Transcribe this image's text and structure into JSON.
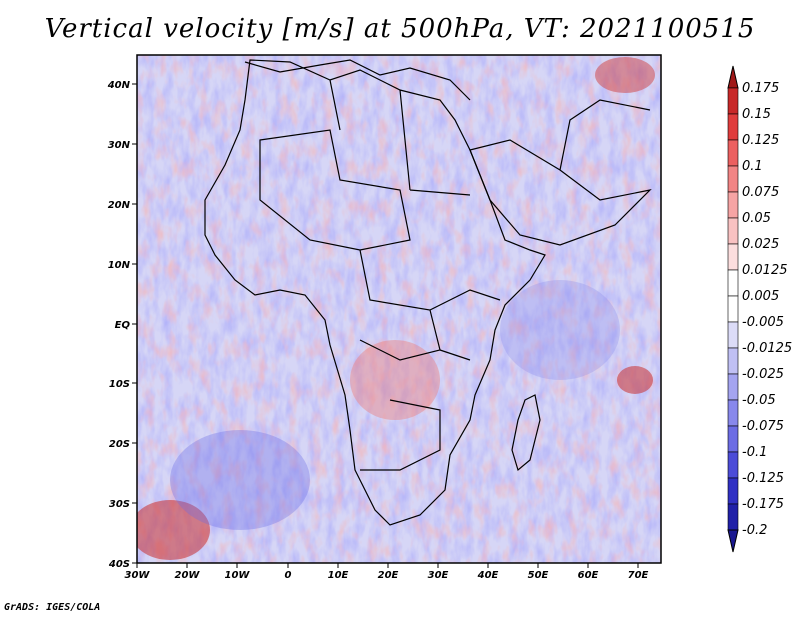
{
  "title": "Vertical velocity [m/s] at 500hPa, VT: 2021100515",
  "credit": "GrADS: IGES/COLA",
  "map": {
    "projection": "lat-lon",
    "lon_range": [
      -30,
      75
    ],
    "lat_range": [
      -40,
      45
    ],
    "lon_ticks": [
      "30W",
      "20W",
      "10W",
      "0",
      "10E",
      "20E",
      "30E",
      "40E",
      "50E",
      "60E",
      "70E"
    ],
    "lat_ticks": [
      "40N",
      "30N",
      "20N",
      "10N",
      "EQ",
      "10S",
      "20S",
      "30S",
      "40S"
    ]
  },
  "colorbar": {
    "levels": [
      "0.175",
      "0.15",
      "0.125",
      "0.1",
      "0.075",
      "0.05",
      "0.025",
      "0.0125",
      "0.005",
      "-0.005",
      "-0.0125",
      "-0.025",
      "-0.05",
      "-0.075",
      "-0.1",
      "-0.125",
      "-0.175",
      "-0.2"
    ],
    "colors": [
      "#a01818",
      "#c82828",
      "#e03c3c",
      "#ec6060",
      "#f28484",
      "#f6a4a4",
      "#f9c2c2",
      "#fcdede",
      "#ffffff",
      "#ffffff",
      "#dcdcf8",
      "#c0c0f4",
      "#a4a4f0",
      "#8888ec",
      "#6c6ce4",
      "#4c4cd8",
      "#3030c4",
      "#2020a8",
      "#1a1890"
    ]
  }
}
